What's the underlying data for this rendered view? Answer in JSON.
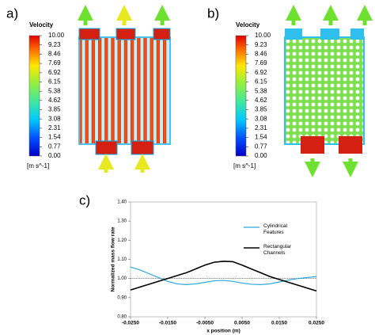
{
  "panels": [
    {
      "label": "a)",
      "colorbar": {
        "title": "Velocity",
        "unit": "[m s^-1]",
        "ticks": [
          {
            "value": 10,
            "label": "10.00"
          },
          {
            "value": 9.23,
            "label": "9.23"
          },
          {
            "value": 8.46,
            "label": "8.46"
          },
          {
            "value": 7.69,
            "label": "7.69"
          },
          {
            "value": 6.92,
            "label": "6.92"
          },
          {
            "value": 6.15,
            "label": "6.15"
          },
          {
            "value": 5.38,
            "label": "5.38"
          },
          {
            "value": 4.62,
            "label": "4.62"
          },
          {
            "value": 3.85,
            "label": "3.85"
          },
          {
            "value": 3.08,
            "label": "3.08"
          },
          {
            "value": 2.31,
            "label": "2.31"
          },
          {
            "value": 1.54,
            "label": "1.54"
          },
          {
            "value": 0.77,
            "label": "0.77"
          },
          {
            "value": 0,
            "label": "0.00"
          }
        ]
      }
    },
    {
      "label": "b)",
      "colorbar": {
        "title": "Velocity",
        "unit": "[m s^-1]",
        "ticks": [
          {
            "value": 10,
            "label": "10.00"
          },
          {
            "value": 9.23,
            "label": "9.23"
          },
          {
            "value": 8.46,
            "label": "8.46"
          },
          {
            "value": 7.69,
            "label": "7.69"
          },
          {
            "value": 6.92,
            "label": "6.92"
          },
          {
            "value": 6.15,
            "label": "6.15"
          },
          {
            "value": 5.38,
            "label": "5.38"
          },
          {
            "value": 4.62,
            "label": "4.62"
          },
          {
            "value": 3.85,
            "label": "3.85"
          },
          {
            "value": 3.08,
            "label": "3.08"
          },
          {
            "value": 2.31,
            "label": "2.31"
          },
          {
            "value": 1.54,
            "label": "1.54"
          },
          {
            "value": 0.77,
            "label": "0.77"
          },
          {
            "value": 0,
            "label": "0.00"
          }
        ]
      }
    }
  ],
  "chart_data": {
    "type": "line",
    "label": "c)",
    "xlabel": "x position (m)",
    "ylabel": "Normalized mass flow rate",
    "x": [
      -0.025,
      -0.0225,
      -0.02,
      -0.0175,
      -0.015,
      -0.0125,
      -0.01,
      -0.0075,
      -0.005,
      -0.0025,
      0,
      0.0025,
      0.005,
      0.0075,
      0.01,
      0.0125,
      0.015,
      0.0175,
      0.02,
      0.0225,
      0.025
    ],
    "series": [
      {
        "name": "Cylindrical Features",
        "color": "#29a8e0",
        "values": [
          1.06,
          1.045,
          1.025,
          1.005,
          0.985,
          0.972,
          0.968,
          0.972,
          0.98,
          0.988,
          0.99,
          0.985,
          0.976,
          0.97,
          0.968,
          0.972,
          0.982,
          0.992,
          1.0,
          1.005,
          1.01
        ]
      },
      {
        "name": "Rectangular Channels",
        "color": "#000000",
        "values": [
          0.94,
          0.955,
          0.97,
          0.985,
          1.0,
          1.015,
          1.03,
          1.05,
          1.07,
          1.085,
          1.09,
          1.088,
          1.07,
          1.05,
          1.03,
          1.01,
          0.995,
          0.98,
          0.965,
          0.95,
          0.935
        ]
      }
    ],
    "reference_line": 1.0,
    "xlim": [
      -0.025,
      0.025
    ],
    "xticks": [
      {
        "value": -0.025,
        "label": "-0.0250"
      },
      {
        "value": -0.015,
        "label": "-0.0150"
      },
      {
        "value": -0.005,
        "label": "-0.0050"
      },
      {
        "value": 0.005,
        "label": "0.0050"
      },
      {
        "value": 0.015,
        "label": "0.0150"
      },
      {
        "value": 0.025,
        "label": "0.0250"
      }
    ],
    "ylim": [
      0.8,
      1.4
    ],
    "yticks": [
      {
        "value": 0.8,
        "label": "0.80"
      },
      {
        "value": 0.9,
        "label": "0.90"
      },
      {
        "value": 1.0,
        "label": "1.00"
      },
      {
        "value": 1.1,
        "label": "1.10"
      },
      {
        "value": 1.2,
        "label": "1.20"
      },
      {
        "value": 1.3,
        "label": "1.30"
      },
      {
        "value": 1.4,
        "label": "1.40"
      }
    ]
  }
}
